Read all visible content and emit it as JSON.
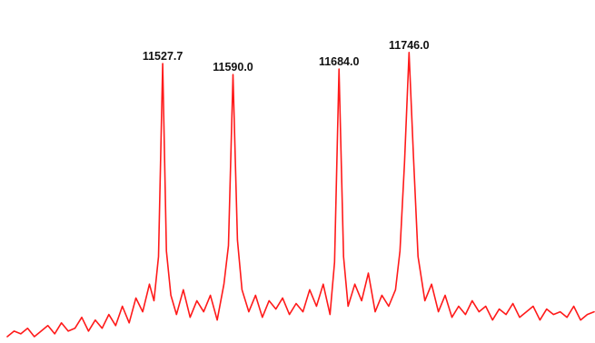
{
  "chart_data": {
    "type": "line",
    "title": "",
    "xlabel": "",
    "ylabel": "",
    "grid": false,
    "legend": "none",
    "line_color": "#ff1a1a",
    "label_color": "#111111",
    "xlim": [
      11390,
      11910
    ],
    "ylim": [
      0,
      100
    ],
    "baseline_y": 0,
    "peaks": [
      {
        "label": "11527.7",
        "x": 11527.7,
        "y": 100
      },
      {
        "label": "11590.0",
        "x": 11590.0,
        "y": 96
      },
      {
        "label": "11684.0",
        "x": 11684.0,
        "y": 98
      },
      {
        "label": "11746.0",
        "x": 11746.0,
        "y": 104
      }
    ],
    "series": [
      {
        "x": [
          11390,
          11396,
          11402,
          11408,
          11414,
          11420,
          11426,
          11432,
          11438,
          11444,
          11450,
          11456,
          11462,
          11468,
          11474,
          11480,
          11486,
          11492,
          11498,
          11504,
          11510,
          11516,
          11520,
          11524,
          11527.7,
          11531,
          11535,
          11540,
          11546,
          11552,
          11558,
          11564,
          11570,
          11576,
          11582,
          11586,
          11590,
          11594,
          11598,
          11604,
          11610,
          11616,
          11622,
          11628,
          11634,
          11640,
          11646,
          11652,
          11658,
          11664,
          11670,
          11676,
          11680,
          11684,
          11688,
          11692,
          11698,
          11704,
          11710,
          11716,
          11722,
          11728,
          11734,
          11738,
          11742,
          11746,
          11750,
          11754,
          11760,
          11766,
          11772,
          11778,
          11784,
          11790,
          11796,
          11802,
          11808,
          11814,
          11820,
          11826,
          11832,
          11838,
          11844,
          11850,
          11856,
          11862,
          11868,
          11874,
          11880,
          11886,
          11892,
          11898,
          11904,
          11910
        ],
        "y": [
          1,
          3,
          2,
          4,
          1,
          3,
          5,
          2,
          6,
          3,
          4,
          8,
          3,
          7,
          4,
          9,
          5,
          12,
          6,
          15,
          10,
          20,
          14,
          30,
          100,
          32,
          16,
          9,
          18,
          8,
          14,
          10,
          16,
          7,
          20,
          34,
          96,
          36,
          18,
          10,
          16,
          8,
          14,
          11,
          15,
          9,
          13,
          10,
          18,
          12,
          20,
          9,
          28,
          98,
          30,
          12,
          20,
          14,
          24,
          10,
          16,
          12,
          18,
          32,
          64,
          104,
          66,
          30,
          14,
          20,
          10,
          16,
          8,
          12,
          9,
          14,
          10,
          12,
          7,
          11,
          9,
          13,
          8,
          10,
          12,
          7,
          11,
          9,
          10,
          8,
          12,
          7,
          9,
          10
        ]
      }
    ]
  }
}
